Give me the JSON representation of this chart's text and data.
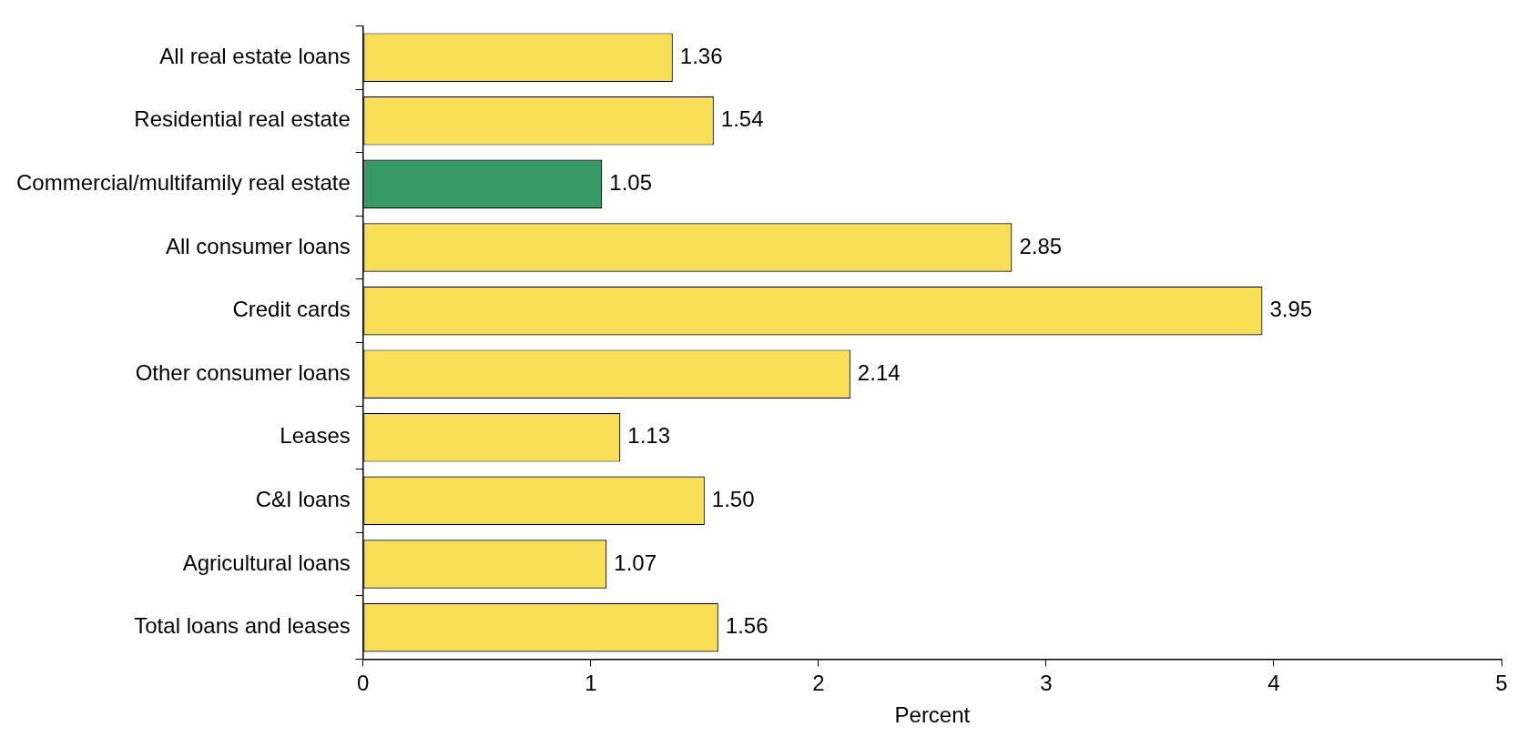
{
  "chart_data": {
    "type": "bar",
    "orientation": "horizontal",
    "xlabel": "Percent",
    "categories": [
      "All real estate loans",
      "Residential real estate",
      "Commercial/multifamily real estate",
      "All consumer loans",
      "Credit cards",
      "Other consumer loans",
      "Leases",
      "C&I loans",
      "Agricultural loans",
      "Total loans and leases"
    ],
    "values": [
      1.36,
      1.54,
      1.05,
      2.85,
      3.95,
      2.14,
      1.13,
      1.5,
      1.07,
      1.56
    ],
    "value_labels": [
      "1.36",
      "1.54",
      "1.05",
      "2.85",
      "3.95",
      "2.14",
      "1.13",
      "1.50",
      "1.07",
      "1.56"
    ],
    "colors": [
      "#f9df55",
      "#f9df55",
      "#359a65",
      "#f9df55",
      "#f9df55",
      "#f9df55",
      "#f9df55",
      "#f9df55",
      "#f9df55",
      "#f9df55"
    ],
    "xlim": [
      0,
      5
    ],
    "xticks": [
      0,
      1,
      2,
      3,
      4,
      5
    ],
    "grid": false,
    "legend": false
  }
}
